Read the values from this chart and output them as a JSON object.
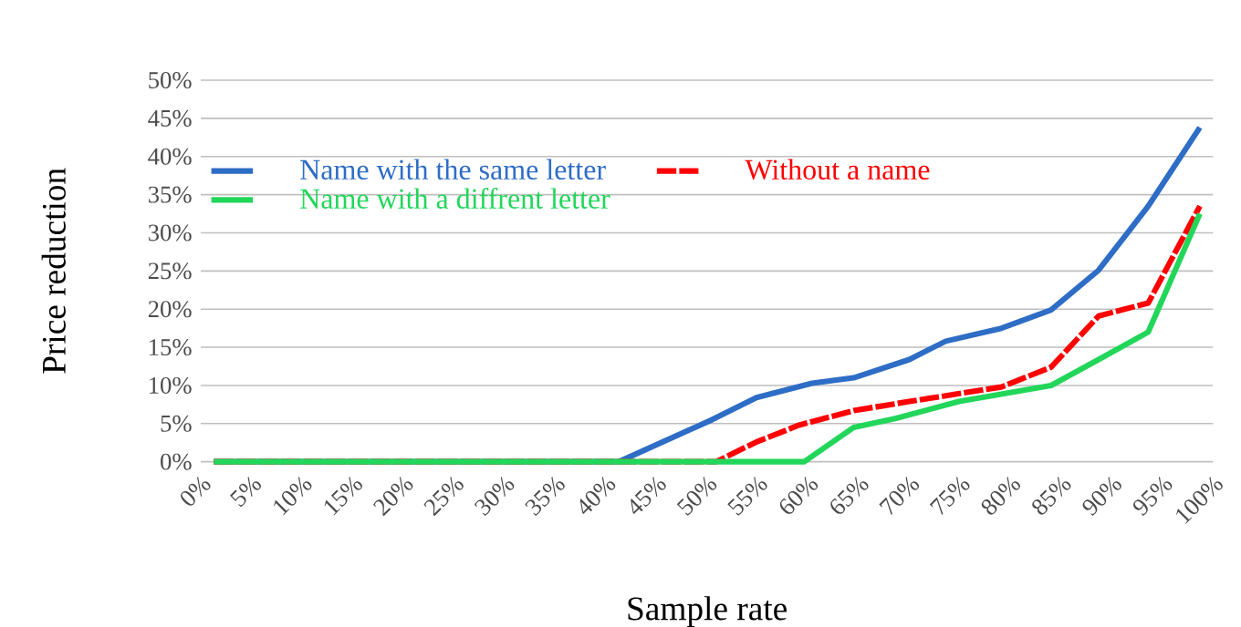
{
  "chart_data": {
    "type": "line",
    "xlabel": "Sample rate",
    "ylabel": "Price reduction",
    "xlim": [
      0,
      100
    ],
    "ylim": [
      0,
      50
    ],
    "xticks": [
      {
        "value": 0,
        "label": "0%"
      },
      {
        "value": 5,
        "label": "5%"
      },
      {
        "value": 10,
        "label": "10%"
      },
      {
        "value": 15,
        "label": "15%"
      },
      {
        "value": 20,
        "label": "20%"
      },
      {
        "value": 25,
        "label": "25%"
      },
      {
        "value": 30,
        "label": "30%"
      },
      {
        "value": 35,
        "label": "35%"
      },
      {
        "value": 40,
        "label": "40%"
      },
      {
        "value": 45,
        "label": "45%"
      },
      {
        "value": 50,
        "label": "50%"
      },
      {
        "value": 55,
        "label": "55%"
      },
      {
        "value": 60,
        "label": "60%"
      },
      {
        "value": 65,
        "label": "65%"
      },
      {
        "value": 70,
        "label": "70%"
      },
      {
        "value": 75,
        "label": "75%"
      },
      {
        "value": 80,
        "label": "80%"
      },
      {
        "value": 85,
        "label": "85%"
      },
      {
        "value": 90,
        "label": "90%"
      },
      {
        "value": 95,
        "label": "95%"
      },
      {
        "value": 100,
        "label": "100%"
      }
    ],
    "yticks": [
      {
        "value": 0,
        "label": "0%"
      },
      {
        "value": 5,
        "label": "5%"
      },
      {
        "value": 10,
        "label": "10%"
      },
      {
        "value": 15,
        "label": "15%"
      },
      {
        "value": 20,
        "label": "20%"
      },
      {
        "value": 25,
        "label": "25%"
      },
      {
        "value": 30,
        "label": "30%"
      },
      {
        "value": 35,
        "label": "35%"
      },
      {
        "value": 40,
        "label": "40%"
      },
      {
        "value": 45,
        "label": "45%"
      },
      {
        "value": 50,
        "label": "50%"
      }
    ],
    "grid": "y",
    "legend": "top left",
    "marker": "none",
    "series": [
      {
        "name": "Name with the same letter",
        "color": "#2e6dc6",
        "line_style": "solid",
        "x": [
          1.3,
          41.3,
          50.5,
          54.9,
          60.4,
          64.5,
          70,
          73.6,
          79.1,
          84,
          88.7,
          93.6,
          98.7
        ],
        "values": [
          0,
          0,
          5.5,
          8.4,
          10.3,
          11,
          13.4,
          15.8,
          17.5,
          19.9,
          25.1,
          33.5,
          43.8
        ]
      },
      {
        "name": "Without a name",
        "color": "#ff0000",
        "line_style": "dashed",
        "x": [
          1.3,
          50.9,
          54.9,
          59.1,
          64.5,
          70,
          79.1,
          84,
          88.7,
          93.6,
          98.7
        ],
        "values": [
          0,
          0,
          2.6,
          4.8,
          6.7,
          7.9,
          9.8,
          12.4,
          19.1,
          20.8,
          33.5
        ]
      },
      {
        "name": "Name with a diffrent letter",
        "color": "#22d65a",
        "line_style": "solid",
        "x": [
          1.3,
          59.6,
          64.5,
          68.7,
          74.9,
          84,
          88.7,
          93.6,
          98.7
        ],
        "values": [
          0,
          0,
          4.5,
          5.7,
          7.9,
          10,
          13.4,
          17,
          32.5
        ]
      }
    ]
  }
}
